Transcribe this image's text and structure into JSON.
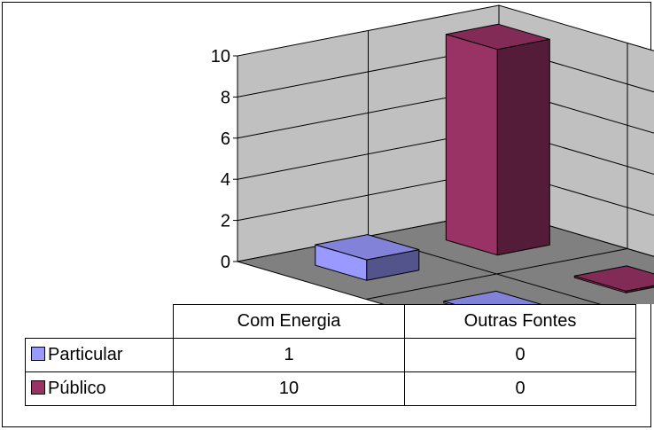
{
  "chart_data": {
    "type": "bar",
    "categories": [
      "Com Energia",
      "Outras Fontes"
    ],
    "series": [
      {
        "name": "Particular",
        "values": [
          1,
          0
        ],
        "color": "#9999FF"
      },
      {
        "name": "Público",
        "values": [
          10,
          0
        ],
        "color": "#993366"
      }
    ],
    "ylim": [
      0,
      10
    ],
    "yticks": [
      "0",
      "2",
      "4",
      "6",
      "8",
      "10"
    ],
    "grid": true,
    "projection": "3d",
    "legend": "data-table",
    "wall_color": "#C0C0C0",
    "floor_color": "#808080"
  }
}
